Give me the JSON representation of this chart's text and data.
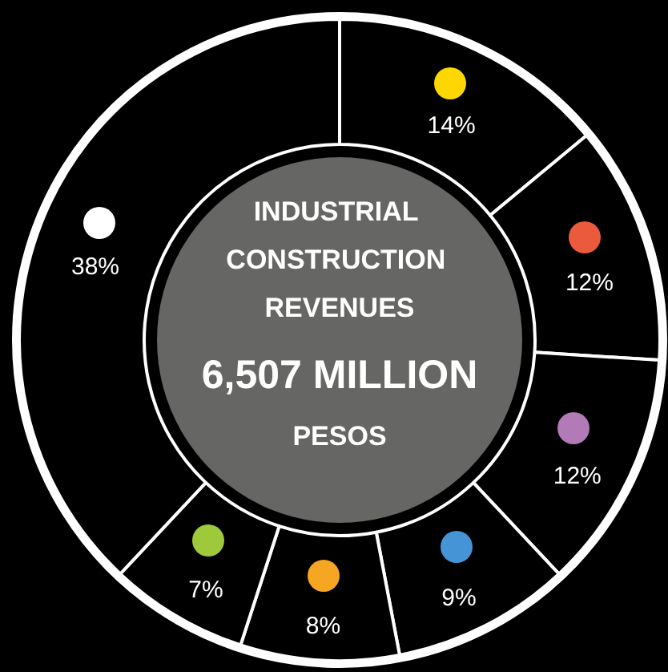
{
  "chart_data": {
    "type": "donut",
    "title": "INDUSTRIAL CONSTRUCTION REVENUES",
    "subtitle": "6,507 MILLION PESOS",
    "categories": [
      null,
      null,
      null,
      null,
      null,
      null,
      null
    ],
    "values": [
      14,
      12,
      12,
      9,
      8,
      7,
      38
    ],
    "value_labels": [
      "14%",
      "12%",
      "12%",
      "9%",
      "8%",
      "7%",
      "38%"
    ],
    "colors": [
      "#000000",
      "#000000",
      "#000000",
      "#000000",
      "#000000",
      "#000000",
      "#000000"
    ]
  }
}
